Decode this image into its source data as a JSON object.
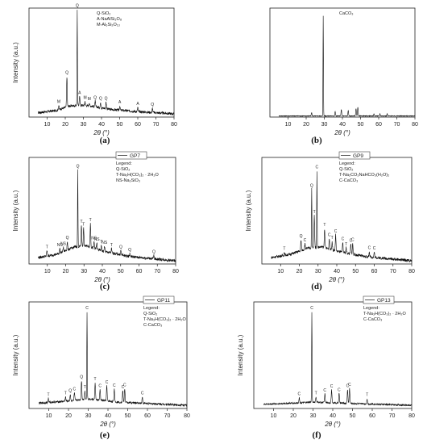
{
  "figure": {
    "panels": [
      {
        "caption": "(a)",
        "legend_title": "",
        "legend": [
          "Q-SiO₂",
          "A-NaAlSi₃O₈",
          "M-Al₆Si₂O₁₃"
        ]
      },
      {
        "caption": "(b)",
        "legend_title": "",
        "legend": [
          "CaCO₃"
        ]
      },
      {
        "caption": "(c)",
        "legend_title": "Legend:",
        "legend": [
          "Q-SiO₂",
          "T-Na₃H(CO₃)₂ · 2H₂O",
          "NS-Na₂SiO₃"
        ]
      },
      {
        "caption": "(d)",
        "legend_title": "Legend:",
        "legend": [
          "Q-SiO₂",
          "T-Na₂CO₃NaHCO₃(H₂O)₂",
          "C-CaCO₃"
        ]
      },
      {
        "caption": "(e)",
        "legend_title": "Legend:",
        "legend": [
          "Q-SiO₂",
          "T-Na₃H(CO₃)₂ · 2H₂O",
          "C-CaCO₃"
        ]
      },
      {
        "caption": "(f)",
        "legend_title": "Legend:",
        "legend": [
          "T-Na₃H(CO₃)₂ · 2H₂O",
          "C-CaCO₃"
        ]
      }
    ]
  },
  "chart_data": [
    {
      "type": "line",
      "panel": "(a)",
      "series_name": "",
      "xlabel": "2θ (°)",
      "ylabel": "Intensity (a.u.)",
      "xlim": [
        0,
        80
      ],
      "xticks": [
        10,
        20,
        30,
        40,
        50,
        60,
        70,
        80
      ],
      "ylim": [
        0,
        100
      ],
      "baseline": [
        [
          5,
          4
        ],
        [
          15,
          6
        ],
        [
          22,
          10
        ],
        [
          28,
          11
        ],
        [
          35,
          10
        ],
        [
          45,
          7
        ],
        [
          60,
          5
        ],
        [
          80,
          3
        ]
      ],
      "noise": 1.2,
      "peaks": [
        {
          "x": 20.9,
          "y": 28,
          "label": "Q"
        },
        {
          "x": 26.6,
          "y": 88,
          "label": "Q"
        },
        {
          "x": 16.4,
          "y": 4,
          "label": "M"
        },
        {
          "x": 27.9,
          "y": 8,
          "label": "A"
        },
        {
          "x": 30.9,
          "y": 4,
          "label": "M"
        },
        {
          "x": 33.2,
          "y": 3,
          "label": "M"
        },
        {
          "x": 36.5,
          "y": 5,
          "label": "Q"
        },
        {
          "x": 39.5,
          "y": 5,
          "label": "Q"
        },
        {
          "x": 42.5,
          "y": 6,
          "label": "Q"
        },
        {
          "x": 50.1,
          "y": 4,
          "label": "A"
        },
        {
          "x": 60.0,
          "y": 4,
          "label": "A"
        },
        {
          "x": 68.1,
          "y": 4,
          "label": "Q"
        }
      ]
    },
    {
      "type": "line",
      "panel": "(b)",
      "series_name": "",
      "xlabel": "2θ (°)",
      "ylabel": "",
      "xlim": [
        0,
        80
      ],
      "xticks": [
        10,
        20,
        30,
        40,
        50,
        60,
        70,
        80
      ],
      "ylim": [
        0,
        100
      ],
      "baseline": [
        [
          5,
          1
        ],
        [
          80,
          1
        ]
      ],
      "noise": 0.3,
      "peaks": [
        {
          "x": 23.0,
          "y": 3,
          "label": ""
        },
        {
          "x": 29.4,
          "y": 92,
          "label": ""
        },
        {
          "x": 36.0,
          "y": 4,
          "label": ""
        },
        {
          "x": 39.4,
          "y": 6,
          "label": ""
        },
        {
          "x": 43.2,
          "y": 5,
          "label": ""
        },
        {
          "x": 47.5,
          "y": 7,
          "label": ""
        },
        {
          "x": 48.5,
          "y": 8,
          "label": ""
        },
        {
          "x": 57.4,
          "y": 2,
          "label": ""
        },
        {
          "x": 60.7,
          "y": 2,
          "label": ""
        },
        {
          "x": 64.7,
          "y": 2,
          "label": ""
        }
      ]
    },
    {
      "type": "line",
      "panel": "(c)",
      "series_name": "GP7",
      "xlabel": "2θ (°)",
      "ylabel": "Intensity (a.u.)",
      "xlim": [
        0,
        80
      ],
      "xticks": [
        10,
        20,
        30,
        40,
        50,
        60,
        70,
        80
      ],
      "ylim": [
        0,
        100
      ],
      "baseline": [
        [
          5,
          6
        ],
        [
          15,
          9
        ],
        [
          25,
          16
        ],
        [
          32,
          17
        ],
        [
          40,
          12
        ],
        [
          55,
          7
        ],
        [
          80,
          3
        ]
      ],
      "noise": 1.3,
      "peaks": [
        {
          "x": 9.8,
          "y": 5,
          "label": "T"
        },
        {
          "x": 16.8,
          "y": 4,
          "label": "NS"
        },
        {
          "x": 18.7,
          "y": 4,
          "label": "NS"
        },
        {
          "x": 20.9,
          "y": 8,
          "label": "Q"
        },
        {
          "x": 26.6,
          "y": 72,
          "label": "Q"
        },
        {
          "x": 28.6,
          "y": 20,
          "label": "T"
        },
        {
          "x": 29.8,
          "y": 17,
          "label": "T"
        },
        {
          "x": 33.5,
          "y": 22,
          "label": "T"
        },
        {
          "x": 35.5,
          "y": 6,
          "label": "NS"
        },
        {
          "x": 37.0,
          "y": 6,
          "label": "NS"
        },
        {
          "x": 39.5,
          "y": 5,
          "label": "T"
        },
        {
          "x": 41.2,
          "y": 5,
          "label": "NS"
        },
        {
          "x": 45.0,
          "y": 4,
          "label": "T"
        },
        {
          "x": 50.1,
          "y": 4,
          "label": "Q"
        },
        {
          "x": 55.0,
          "y": 3,
          "label": "Q"
        },
        {
          "x": 68.1,
          "y": 3,
          "label": "Q"
        }
      ]
    },
    {
      "type": "line",
      "panel": "(d)",
      "series_name": "GP9",
      "xlabel": "2θ (°)",
      "ylabel": "Intensity (a.u.)",
      "xlim": [
        0,
        80
      ],
      "xticks": [
        10,
        20,
        30,
        40,
        50,
        60,
        70,
        80
      ],
      "ylim": [
        0,
        100
      ],
      "baseline": [
        [
          5,
          6
        ],
        [
          15,
          9
        ],
        [
          25,
          15
        ],
        [
          32,
          16
        ],
        [
          40,
          12
        ],
        [
          55,
          7
        ],
        [
          80,
          3
        ]
      ],
      "noise": 1.3,
      "peaks": [
        {
          "x": 12.0,
          "y": 3,
          "label": "T"
        },
        {
          "x": 20.9,
          "y": 10,
          "label": "Q"
        },
        {
          "x": 23.0,
          "y": 5,
          "label": "C"
        },
        {
          "x": 26.6,
          "y": 55,
          "label": "Q"
        },
        {
          "x": 28.0,
          "y": 30,
          "label": "T"
        },
        {
          "x": 29.4,
          "y": 72,
          "label": "C"
        },
        {
          "x": 33.5,
          "y": 18,
          "label": "T"
        },
        {
          "x": 36.0,
          "y": 10,
          "label": "C"
        },
        {
          "x": 37.5,
          "y": 8,
          "label": "T"
        },
        {
          "x": 39.4,
          "y": 15,
          "label": "C"
        },
        {
          "x": 43.2,
          "y": 9,
          "label": "C"
        },
        {
          "x": 45.0,
          "y": 5,
          "label": "T"
        },
        {
          "x": 47.5,
          "y": 9,
          "label": "C"
        },
        {
          "x": 48.5,
          "y": 10,
          "label": "C"
        },
        {
          "x": 57.4,
          "y": 5,
          "label": "C"
        },
        {
          "x": 60.0,
          "y": 5,
          "label": "C"
        }
      ]
    },
    {
      "type": "line",
      "panel": "(e)",
      "series_name": "GP11",
      "xlabel": "2θ (°)",
      "ylabel": "Intensity (a.u.)",
      "xlim": [
        0,
        80
      ],
      "xticks": [
        10,
        20,
        30,
        40,
        50,
        60,
        70,
        80
      ],
      "ylim": [
        0,
        100
      ],
      "baseline": [
        [
          5,
          5
        ],
        [
          20,
          7
        ],
        [
          30,
          9
        ],
        [
          45,
          6
        ],
        [
          80,
          3
        ]
      ],
      "noise": 1.0,
      "peaks": [
        {
          "x": 9.8,
          "y": 4,
          "label": "T"
        },
        {
          "x": 18.5,
          "y": 4,
          "label": "T"
        },
        {
          "x": 20.9,
          "y": 6,
          "label": "Q"
        },
        {
          "x": 23.0,
          "y": 7,
          "label": "C"
        },
        {
          "x": 26.6,
          "y": 18,
          "label": "Q"
        },
        {
          "x": 28.3,
          "y": 8,
          "label": "T"
        },
        {
          "x": 29.4,
          "y": 82,
          "label": "C"
        },
        {
          "x": 33.5,
          "y": 16,
          "label": "T"
        },
        {
          "x": 36.0,
          "y": 10,
          "label": "C"
        },
        {
          "x": 39.4,
          "y": 14,
          "label": "C"
        },
        {
          "x": 43.2,
          "y": 12,
          "label": "C"
        },
        {
          "x": 47.5,
          "y": 11,
          "label": "C"
        },
        {
          "x": 48.5,
          "y": 13,
          "label": "C"
        },
        {
          "x": 57.4,
          "y": 6,
          "label": "C"
        }
      ]
    },
    {
      "type": "line",
      "panel": "(f)",
      "series_name": "GP13",
      "xlabel": "2θ (°)",
      "ylabel": "Intensity (a.u.)",
      "xlim": [
        0,
        80
      ],
      "xticks": [
        10,
        20,
        30,
        40,
        50,
        60,
        70,
        80
      ],
      "ylim": [
        0,
        100
      ],
      "baseline": [
        [
          5,
          4
        ],
        [
          20,
          5
        ],
        [
          30,
          6
        ],
        [
          45,
          5
        ],
        [
          80,
          3
        ]
      ],
      "noise": 0.8,
      "peaks": [
        {
          "x": 23.0,
          "y": 5,
          "label": "C"
        },
        {
          "x": 29.4,
          "y": 85,
          "label": "C"
        },
        {
          "x": 31.5,
          "y": 5,
          "label": "T"
        },
        {
          "x": 36.0,
          "y": 8,
          "label": "C"
        },
        {
          "x": 39.4,
          "y": 12,
          "label": "C"
        },
        {
          "x": 43.2,
          "y": 9,
          "label": "C"
        },
        {
          "x": 47.5,
          "y": 13,
          "label": "C"
        },
        {
          "x": 48.5,
          "y": 14,
          "label": "C"
        },
        {
          "x": 57.4,
          "y": 5,
          "label": "T"
        }
      ]
    }
  ]
}
